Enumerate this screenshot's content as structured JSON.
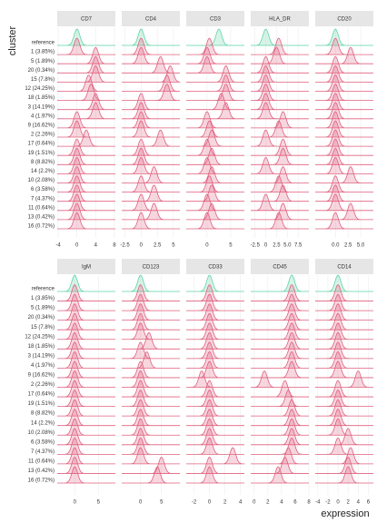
{
  "chart_data": {
    "type": "ridgeline",
    "y_label": "cluster",
    "x_label": "expression",
    "reference_color": "#5fd3a8",
    "color": "#e0607e",
    "categories": [
      "reference",
      "1 (3.85%)",
      "5 (1.89%)",
      "20 (0.34%)",
      "15 (7.8%)",
      "12 (24.25%)",
      "18 (1.85%)",
      "3 (14.19%)",
      "4 (1.97%)",
      "9 (16.62%)",
      "2 (2.26%)",
      "17 (0.64%)",
      "19 (1.51%)",
      "8 (8.82%)",
      "14 (2.2%)",
      "10 (2.08%)",
      "6 (3.58%)",
      "7 (4.37%)",
      "11 (0.64%)",
      "13 (0.42%)",
      "16 (0.72%)"
    ],
    "panels": [
      {
        "title": "CD7",
        "xlim": [
          -4.2,
          8.2
        ],
        "xticks": [
          -4,
          0,
          4,
          8
        ],
        "modes": [
          0,
          0,
          4,
          4,
          4,
          2.5,
          3,
          4,
          4,
          0,
          0,
          2,
          0,
          0,
          0,
          0,
          0,
          0,
          0,
          0,
          0
        ]
      },
      {
        "title": "CD4",
        "xlim": [
          -3,
          6
        ],
        "xticks": [
          -2.5,
          0,
          2.5,
          5
        ],
        "modes": [
          0,
          0,
          0,
          3,
          4.5,
          4,
          4,
          0,
          0,
          0,
          0,
          3,
          0,
          0,
          0,
          2,
          0,
          2,
          0,
          2,
          0
        ]
      },
      {
        "title": "CD3",
        "xlim": [
          -4.4,
          7.9
        ],
        "xticks": [
          0,
          5
        ],
        "modes": [
          2.5,
          0.5,
          0,
          0,
          4,
          4,
          4,
          3,
          4,
          0,
          0.5,
          1,
          0,
          1,
          0,
          1,
          0.5,
          1,
          0,
          1,
          0
        ]
      },
      {
        "title": "HLA_DR",
        "xlim": [
          -3.5,
          10
        ],
        "xticks": [
          -2.5,
          0,
          2.5,
          {
            "value": 5,
            "label": "5.0"
          },
          7.5
        ],
        "modes": [
          0,
          3,
          2.5,
          0,
          0,
          0,
          0,
          0,
          0,
          4,
          3,
          0,
          4,
          4,
          0,
          4,
          3,
          4,
          0,
          4,
          3
        ]
      },
      {
        "title": "CD20",
        "xlim": [
          -4,
          7.5
        ],
        "xticks": [
          {
            "value": 0,
            "label": "0.0"
          },
          2.5,
          {
            "value": 5,
            "label": "5.0"
          }
        ],
        "modes": [
          0,
          0,
          3,
          0,
          0,
          0,
          0,
          0,
          0,
          0,
          0,
          0,
          0,
          0,
          0,
          3,
          0,
          0,
          0,
          3,
          0
        ]
      },
      {
        "title": "IgM",
        "xlim": [
          -3.7,
          8.6
        ],
        "xticks": [
          0,
          5
        ],
        "modes": [
          0,
          0,
          0,
          0,
          0,
          0,
          0,
          0,
          0,
          0,
          0,
          0,
          0,
          0,
          0,
          0,
          0,
          0,
          0,
          0,
          0
        ]
      },
      {
        "title": "CD123",
        "xlim": [
          -4.5,
          9.4
        ],
        "xticks": [
          0,
          5
        ],
        "modes": [
          0,
          0,
          0,
          0,
          0,
          0,
          2,
          0,
          1.5,
          0,
          0,
          0,
          0,
          0,
          0,
          0,
          0,
          0,
          0,
          5,
          4
        ]
      },
      {
        "title": "CD33",
        "xlim": [
          -3,
          4.5
        ],
        "xticks": [
          -2,
          0,
          2,
          4
        ],
        "modes": [
          0,
          0,
          0,
          0,
          0,
          0,
          0,
          0,
          0,
          0,
          -1,
          0,
          0,
          0,
          0,
          0,
          0,
          0,
          3,
          0,
          0
        ]
      },
      {
        "title": "CD45",
        "xlim": [
          -0.5,
          8
        ],
        "xticks": [
          0,
          2,
          4,
          6,
          8
        ],
        "modes": [
          5.5,
          5.5,
          5.5,
          5.5,
          5.5,
          5.5,
          5.5,
          5.5,
          5.5,
          5.5,
          1.5,
          4.5,
          5,
          5.5,
          5.5,
          5.5,
          5.5,
          5.5,
          5,
          4.5,
          3.5
        ]
      },
      {
        "title": "CD14",
        "xlim": [
          -4.5,
          7
        ],
        "xticks": [
          -4,
          -2,
          0,
          2,
          4,
          6
        ],
        "modes": [
          0,
          0,
          0,
          0,
          0,
          0,
          0,
          0,
          0,
          0,
          4,
          0,
          0,
          0,
          0,
          0,
          2,
          0,
          2.5,
          2,
          2
        ]
      }
    ]
  }
}
